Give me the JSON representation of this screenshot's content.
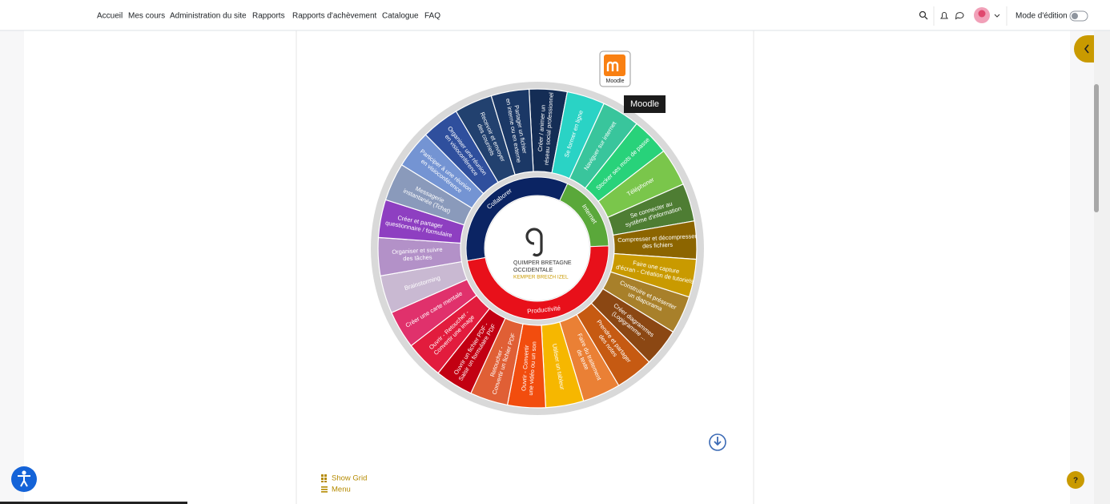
{
  "nav": {
    "items": [
      "Accueil",
      "Mes cours",
      "Administration du site",
      "Rapports",
      "Rapports d'achèvement",
      "Catalogue",
      "FAQ"
    ],
    "edit_mode": "Mode d'édition"
  },
  "wheel": {
    "segments": [
      {
        "lines": [
          "Créer / animer un",
          "réseau social professionnel"
        ],
        "color": "#142d55"
      },
      {
        "lines": [
          "Se former en ligne"
        ],
        "color": "#2ad3c5"
      },
      {
        "lines": [
          "Naviguer sur internet"
        ],
        "color": "#39c59c"
      },
      {
        "lines": [
          "Stocker ses mots de passe"
        ],
        "color": "#28d27a"
      },
      {
        "lines": [
          "Téléphoner"
        ],
        "color": "#7ac64b"
      },
      {
        "lines": [
          "Se connecter au",
          "système d'information"
        ],
        "color": "#4e7d33"
      },
      {
        "lines": [
          "Compresser et décompresser",
          "des fichiers"
        ],
        "color": "#8c6500"
      },
      {
        "lines": [
          "Faire une capture",
          "d'écran - Création de tutoriels"
        ],
        "color": "#c99a00"
      },
      {
        "lines": [
          "Construire et présenter",
          "un diaporama"
        ],
        "color": "#a8802a"
      },
      {
        "lines": [
          "Créer diagrammes",
          "(Logigramme ..."
        ],
        "color": "#8b4713"
      },
      {
        "lines": [
          "Prendre et partager",
          "des notes"
        ],
        "color": "#c65a12"
      },
      {
        "lines": [
          "Faire du traitement",
          "de texte"
        ],
        "color": "#ea8035"
      },
      {
        "lines": [
          "Utiliser un tableur"
        ],
        "color": "#f6b700"
      },
      {
        "lines": [
          "Ouvrir - Convertir",
          "une vidéo ou un son"
        ],
        "color": "#f24d0e"
      },
      {
        "lines": [
          "Retoucher -",
          "Convertir un fichier PDF"
        ],
        "color": "#e05f35"
      },
      {
        "lines": [
          "Ouvrir un fichier PDF -",
          "Saisir un formulaire PDF"
        ],
        "color": "#c20012"
      },
      {
        "lines": [
          "Ouvrir - Retoucher -",
          "Convertir une image"
        ],
        "color": "#e21c3d"
      },
      {
        "lines": [
          "Créer une carte mentale"
        ],
        "color": "#e0316c"
      },
      {
        "lines": [
          "Brainstorming"
        ],
        "color": "#c9b9d2"
      },
      {
        "lines": [
          "Organiser et suivre",
          "des tâches"
        ],
        "color": "#b391c8"
      },
      {
        "lines": [
          "Créer et partager",
          "questionnaire / formulaire"
        ],
        "color": "#8e3fc1"
      },
      {
        "lines": [
          "Messagerie",
          "instantanée (Tchat)"
        ],
        "color": "#8a9abb"
      },
      {
        "lines": [
          "Participer à une réunion",
          "en visioconférence"
        ],
        "color": "#7494d3"
      },
      {
        "lines": [
          "Organiser une réunion",
          "en visioconférence"
        ],
        "color": "#2f4f9d"
      },
      {
        "lines": [
          "Recevoir et envoyer",
          "des courriels"
        ],
        "color": "#22416f"
      },
      {
        "lines": [
          "Partager un fichier",
          "en interne ou en externe"
        ],
        "color": "#1b3866"
      }
    ],
    "categories": [
      {
        "label": "Collaborer",
        "color": "#0b2463"
      },
      {
        "label": "Internet",
        "color": "#5aa83a"
      },
      {
        "label": "Productivité",
        "color": "#e8101a"
      }
    ],
    "center": {
      "line1": "QUIMPER BRETAGNE",
      "line2": "OCCIDENTALE",
      "line3": "KEMPER BREIZH IZEL"
    }
  },
  "moodle": {
    "label": "Moodle",
    "tooltip": "Moodle"
  },
  "footer_links": [
    "Show Grid",
    "Menu"
  ],
  "help": "?"
}
